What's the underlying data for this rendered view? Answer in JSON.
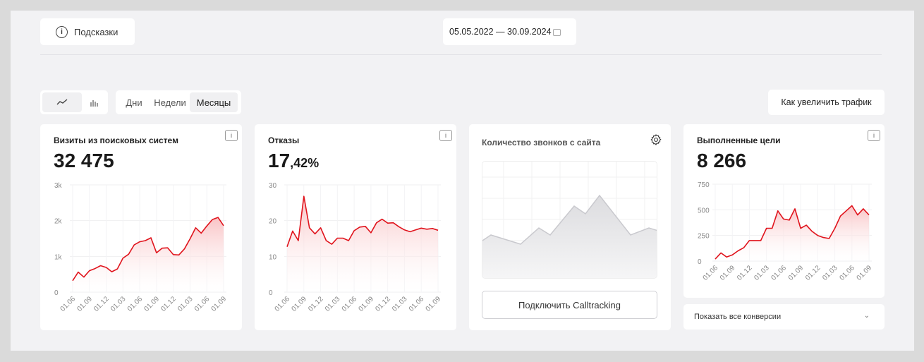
{
  "toolbar": {
    "hints_label": "Подсказки",
    "date_range": "05.05.2022 — 30.09.2024",
    "chart_type_options": [
      "line-chart-icon",
      "bar-chart-icon"
    ],
    "period_options": [
      "Дни",
      "Недели",
      "Месяцы"
    ],
    "period_active": "Месяцы",
    "traffic_button": "Как увеличить трафик"
  },
  "cards": {
    "visits": {
      "title": "Визиты из поисковых систем",
      "value": "32 475",
      "info": "i"
    },
    "bounces": {
      "title": "Отказы",
      "value_main": "17",
      "value_frac": ",42%",
      "info": "i"
    },
    "calls": {
      "title": "Количество звонков с сайта",
      "button": "Подключить Calltracking"
    },
    "goals": {
      "title": "Выполненные цели",
      "value": "8 266",
      "info": "i",
      "conversions_dropdown": "Показать все конверсии"
    }
  },
  "colors": {
    "accent": "#e0141d",
    "fill_top": "#f9c3c5",
    "placeholder_line": "#c9c9ce"
  },
  "chart_data": [
    {
      "type": "area",
      "title": "Визиты из поисковых систем",
      "x_ticks": [
        "01.06",
        "01.09",
        "01.12",
        "01.03",
        "01.06",
        "01.09",
        "01.12",
        "01.03",
        "01.06",
        "01.09"
      ],
      "y_ticks": [
        "0",
        "1k",
        "2k",
        "3k"
      ],
      "ylim": [
        0,
        3000
      ],
      "grid": true,
      "values": [
        320,
        560,
        420,
        600,
        660,
        740,
        690,
        570,
        650,
        950,
        1060,
        1320,
        1410,
        1440,
        1520,
        1100,
        1230,
        1240,
        1050,
        1040,
        1210,
        1490,
        1800,
        1650,
        1850,
        2030,
        2090,
        1860
      ]
    },
    {
      "type": "area",
      "title": "Отказы",
      "x_ticks": [
        "01.06",
        "01.09",
        "01.12",
        "01.03",
        "01.06",
        "01.09",
        "01.12",
        "01.03",
        "01.06",
        "01.09"
      ],
      "y_ticks": [
        "0",
        "10",
        "20",
        "30"
      ],
      "ylim": [
        0,
        30
      ],
      "grid": true,
      "values": [
        12.7,
        17.1,
        14.4,
        26.8,
        18.0,
        16.3,
        18.0,
        14.4,
        13.4,
        15.1,
        15.1,
        14.4,
        17.2,
        18.2,
        18.4,
        16.6,
        19.4,
        20.4,
        19.3,
        19.4,
        18.3,
        17.4,
        16.9,
        17.4,
        17.9,
        17.6,
        17.8,
        17.3
      ]
    },
    {
      "type": "area",
      "title": "Выполненные цели",
      "x_ticks": [
        "01.06",
        "01.09",
        "01.12",
        "01.03",
        "01.06",
        "01.09",
        "01.12",
        "01.03",
        "01.06",
        "01.09"
      ],
      "y_ticks": [
        "0",
        "250",
        "500",
        "750"
      ],
      "ylim": [
        0,
        750
      ],
      "grid": true,
      "values": [
        20,
        80,
        40,
        60,
        100,
        130,
        200,
        200,
        200,
        320,
        320,
        490,
        410,
        400,
        510,
        320,
        350,
        290,
        250,
        230,
        220,
        320,
        440,
        490,
        540,
        450,
        510,
        450
      ]
    }
  ]
}
